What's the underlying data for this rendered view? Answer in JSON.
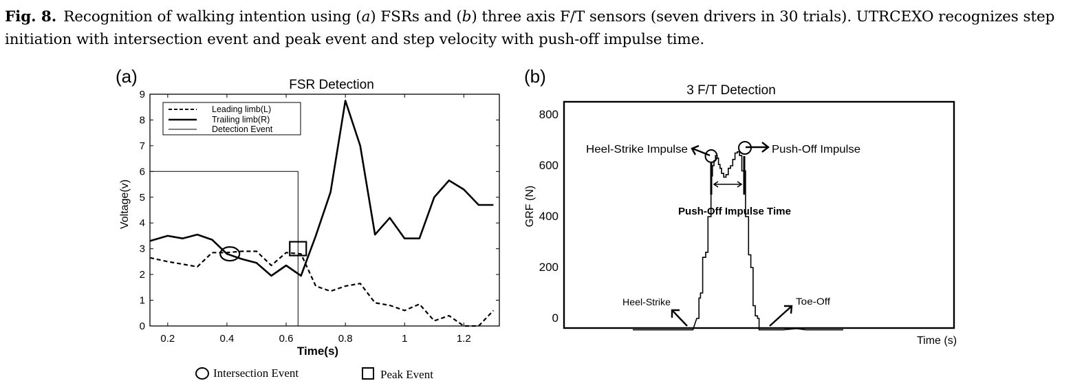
{
  "caption": {
    "label": "Fig. 8.",
    "text_1": "Recognition of walking intention using (",
    "a": "a",
    "text_2": ") FSRs and (",
    "b": "b",
    "text_3": ") three axis F/T sensors (seven drivers in 30 trials). UTRCEXO recognizes step initiation with intersection event and peak event and step velocity with push-off impulse time."
  },
  "panel_a": {
    "panel_label": "(a)",
    "marker_legend": {
      "intersection": "Intersection Event",
      "peak": "Peak Event"
    }
  },
  "panel_b": {
    "panel_label": "(b)",
    "annotations": {
      "heel_strike_impulse": "Heel-Strike Impulse",
      "push_off_impulse": "Push-Off Impulse",
      "push_off_impulse_time": "Push-Off Impulse Time",
      "heel_strike": "Heel-Strike",
      "toe_off": "Toe-Off"
    }
  },
  "chart_data": [
    {
      "type": "line",
      "title": "FSR Detection",
      "xlabel": "Time(s)",
      "ylabel": "Voltage(v)",
      "xlim": [
        0.14,
        1.32
      ],
      "ylim": [
        0,
        9
      ],
      "x_ticks": [
        "0.2",
        "0.4",
        "0.6",
        "0.8",
        "1",
        "1.2"
      ],
      "y_ticks": [
        "0",
        "1",
        "2",
        "3",
        "4",
        "5",
        "6",
        "7",
        "8",
        "9"
      ],
      "legend_position": "top-left",
      "series": [
        {
          "name": "Leading limb(L)",
          "style": "dashed",
          "x": [
            0.14,
            0.2,
            0.25,
            0.3,
            0.35,
            0.4,
            0.45,
            0.5,
            0.55,
            0.6,
            0.65,
            0.7,
            0.75,
            0.8,
            0.85,
            0.9,
            0.95,
            1.0,
            1.05,
            1.1,
            1.15,
            1.2,
            1.25,
            1.3
          ],
          "values": [
            2.65,
            2.5,
            2.4,
            2.3,
            2.85,
            2.85,
            2.9,
            2.9,
            2.35,
            2.85,
            2.8,
            1.55,
            1.35,
            1.55,
            1.65,
            0.9,
            0.8,
            0.6,
            0.85,
            0.2,
            0.4,
            0.0,
            0.0,
            0.6
          ]
        },
        {
          "name": "Trailing limb(R)",
          "style": "solid",
          "x": [
            0.14,
            0.2,
            0.25,
            0.3,
            0.35,
            0.4,
            0.45,
            0.5,
            0.55,
            0.6,
            0.65,
            0.7,
            0.75,
            0.8,
            0.85,
            0.9,
            0.95,
            1.0,
            1.05,
            1.1,
            1.15,
            1.2,
            1.25,
            1.3
          ],
          "values": [
            3.3,
            3.5,
            3.4,
            3.55,
            3.35,
            2.8,
            2.6,
            2.45,
            1.95,
            2.35,
            1.95,
            3.5,
            5.2,
            8.75,
            7.0,
            3.55,
            4.2,
            3.4,
            3.4,
            5.0,
            5.65,
            5.3,
            4.7,
            4.7
          ]
        },
        {
          "name": "Detection Event",
          "style": "thin",
          "x": [
            0.14,
            0.64,
            0.64
          ],
          "values": [
            6.0,
            6.0,
            0.0
          ]
        }
      ],
      "markers": [
        {
          "kind": "intersection",
          "x": 0.41,
          "y": 2.8
        },
        {
          "kind": "peak",
          "x": 0.64,
          "y": 2.95
        }
      ]
    },
    {
      "type": "line",
      "title": "3 F/T Detection",
      "xlabel": "Time (s)",
      "ylabel": "GRF (N)",
      "ylim": [
        -45,
        850
      ],
      "y_ticks": [
        "0",
        "200",
        "400",
        "600",
        "800"
      ],
      "series": [
        {
          "name": "",
          "x": [
            0,
            80,
            80,
            85,
            88,
            88,
            90,
            90,
            93,
            93,
            97,
            97,
            100,
            100,
            104,
            104,
            106,
            106,
            108,
            108,
            110,
            110,
            112,
            112,
            114,
            114,
            116,
            116,
            118,
            118,
            121,
            121,
            124,
            124,
            127,
            127,
            130,
            130,
            133,
            133,
            136,
            136,
            139,
            139,
            142,
            142,
            145,
            145,
            150,
            150,
            154,
            154,
            157,
            157,
            160,
            160,
            163,
            163,
            166,
            166,
            168,
            168,
            200,
            218,
            230,
            280
          ],
          "values": [
            -45,
            -45,
            -45,
            0,
            0,
            80,
            80,
            100,
            100,
            240,
            240,
            260,
            260,
            400,
            400,
            560,
            560,
            600,
            600,
            620,
            620,
            640,
            640,
            630,
            630,
            605,
            605,
            590,
            590,
            570,
            570,
            555,
            555,
            565,
            565,
            590,
            590,
            600,
            600,
            625,
            625,
            650,
            650,
            655,
            655,
            640,
            640,
            580,
            580,
            400,
            400,
            250,
            250,
            200,
            200,
            50,
            50,
            10,
            10,
            0,
            0,
            -45,
            -45,
            -40,
            -45,
            -45
          ]
        }
      ]
    }
  ]
}
